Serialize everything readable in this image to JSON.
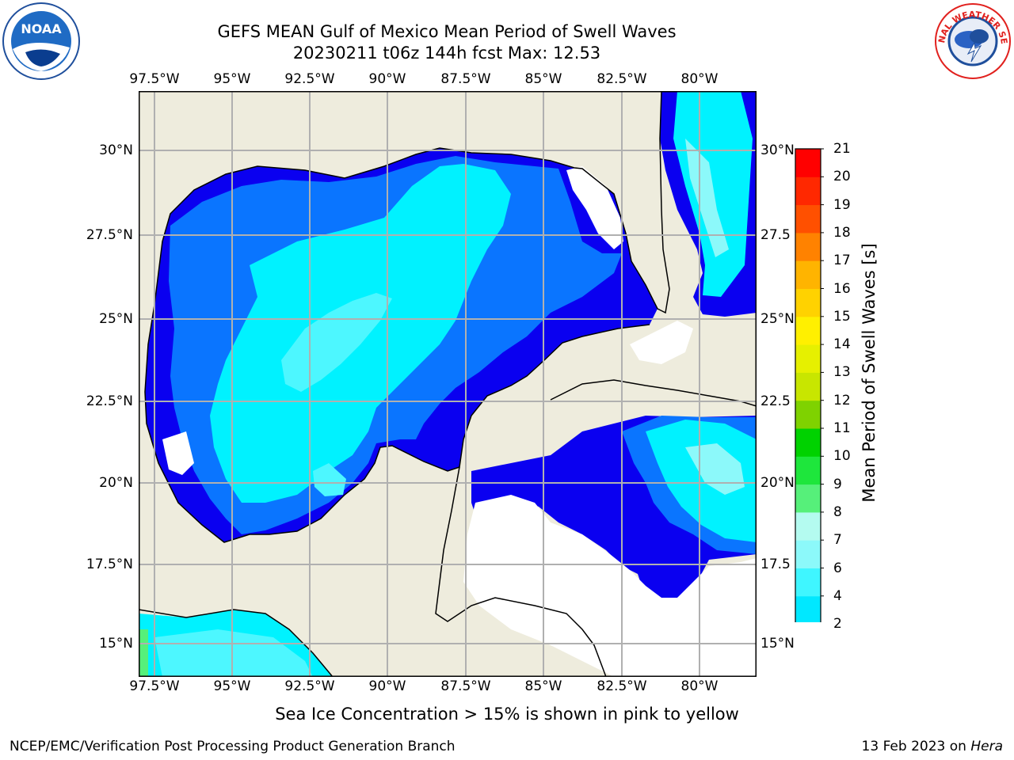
{
  "title": {
    "line1": "GEFS MEAN Gulf of Mexico Mean Period of Swell Waves",
    "line2": "20230211 t06z 144h fcst   Max: 12.53"
  },
  "map": {
    "lon_labels": [
      "97.5°W",
      "95°W",
      "92.5°W",
      "90°W",
      "87.5°W",
      "85°W",
      "82.5°W",
      "80°W"
    ],
    "lat_labels_left": [
      "30°N",
      "27.5°N",
      "25°N",
      "22.5°N",
      "20°N",
      "17.5°N",
      "15°N"
    ],
    "lat_labels_right": [
      "30°N",
      "27.5",
      "25°N",
      "22.5",
      "20°N",
      "17.5",
      "15°N"
    ],
    "land_color": "#eeecdd",
    "grid_color": "#b0b0b0"
  },
  "colorbar": {
    "label": "Mean Period of Swell Waves [s]",
    "ticks": [
      "21",
      "20",
      "19",
      "18",
      "17",
      "16",
      "15",
      "14",
      "13",
      "12",
      "11",
      "10",
      "9",
      "8",
      "7",
      "6",
      "4",
      "2"
    ],
    "levels": [
      2,
      4,
      6,
      7,
      8,
      9,
      10,
      11,
      12,
      13,
      14,
      15,
      16,
      17,
      18,
      19,
      20,
      21
    ],
    "colors": [
      "#0000f0",
      "#0a75ff",
      "#00e8ff",
      "#3ff6ff",
      "#8cf9fa",
      "#b4fbf0",
      "#56f07a",
      "#1ee63c",
      "#00d200",
      "#7fd200",
      "#c8e600",
      "#e6f000",
      "#fff000",
      "#ffd200",
      "#ffb400",
      "#ff8200",
      "#ff5000",
      "#ff2800",
      "#ff0000"
    ],
    "extend": "min"
  },
  "notes": {
    "sea_ice": "Sea Ice Concentration > 15% is shown in pink to yellow"
  },
  "footer": {
    "left": "NCEP/EMC/Verification Post Processing Product Generation Branch",
    "date": "13 Feb 2023 on ",
    "machine": "Hera"
  },
  "logos": {
    "left": "NOAA",
    "right": "NATIONAL WEATHER SERVICE"
  }
}
